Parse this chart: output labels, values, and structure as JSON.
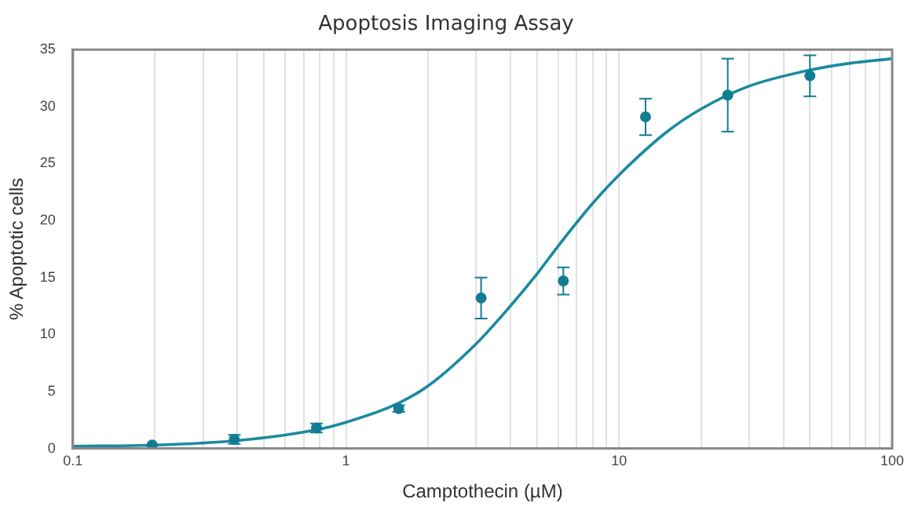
{
  "chart_data": {
    "type": "scatter",
    "title": "Apoptosis Imaging Assay",
    "xlabel": "Camptothecin (µM)",
    "ylabel": "% Apoptotic cells",
    "log": "x",
    "grid": "x",
    "legend": false,
    "marker": "circle",
    "xlim": [
      0.1,
      100
    ],
    "ylim": [
      0,
      35
    ],
    "xticks": [
      0.1,
      {
        "value": 0.2,
        "label": null
      },
      {
        "value": 0.3,
        "label": null
      },
      {
        "value": 0.4,
        "label": null
      },
      {
        "value": 0.5,
        "label": null
      },
      {
        "value": 0.6,
        "label": null
      },
      {
        "value": 0.7,
        "label": null
      },
      {
        "value": 0.8,
        "label": null
      },
      {
        "value": 0.9,
        "label": null
      },
      1,
      {
        "value": 2,
        "label": null
      },
      {
        "value": 3,
        "label": null
      },
      {
        "value": 4,
        "label": null
      },
      {
        "value": 5,
        "label": null
      },
      {
        "value": 6,
        "label": null
      },
      {
        "value": 7,
        "label": null
      },
      {
        "value": 8,
        "label": null
      },
      {
        "value": 9,
        "label": null
      },
      10,
      {
        "value": 20,
        "label": null
      },
      {
        "value": 30,
        "label": null
      },
      {
        "value": 40,
        "label": null
      },
      {
        "value": 50,
        "label": null
      },
      {
        "value": 60,
        "label": null
      },
      {
        "value": 70,
        "label": null
      },
      {
        "value": 80,
        "label": null
      },
      {
        "value": 90,
        "label": null
      },
      100
    ],
    "yticks": [
      0,
      5,
      10,
      15,
      20,
      25,
      30,
      35
    ],
    "series": [
      {
        "color": "#127d92",
        "x": [
          0.195,
          0.39,
          0.78,
          1.56,
          3.125,
          6.25,
          12.5,
          25,
          50
        ],
        "values": [
          0.3,
          0.8,
          1.8,
          3.5,
          13.2,
          14.7,
          29.1,
          31.0,
          32.7
        ],
        "errors": [
          null,
          0.4,
          0.4,
          0.3,
          1.8,
          1.2,
          1.6,
          3.2,
          1.8
        ]
      },
      {
        "type": "line",
        "color": "#1a8aa0",
        "marker": "none",
        "x": [
          0.1,
          0.2,
          0.4,
          0.8,
          1,
          1.5,
          2,
          3,
          4,
          5,
          6,
          8,
          10,
          15,
          20,
          30,
          50,
          70,
          100
        ],
        "values": [
          0.2,
          0.3,
          0.7,
          1.7,
          2.3,
          3.8,
          5.5,
          9.2,
          12.5,
          15.3,
          17.8,
          21.5,
          24.0,
          27.8,
          29.8,
          31.8,
          33.2,
          33.8,
          34.2
        ]
      }
    ]
  }
}
